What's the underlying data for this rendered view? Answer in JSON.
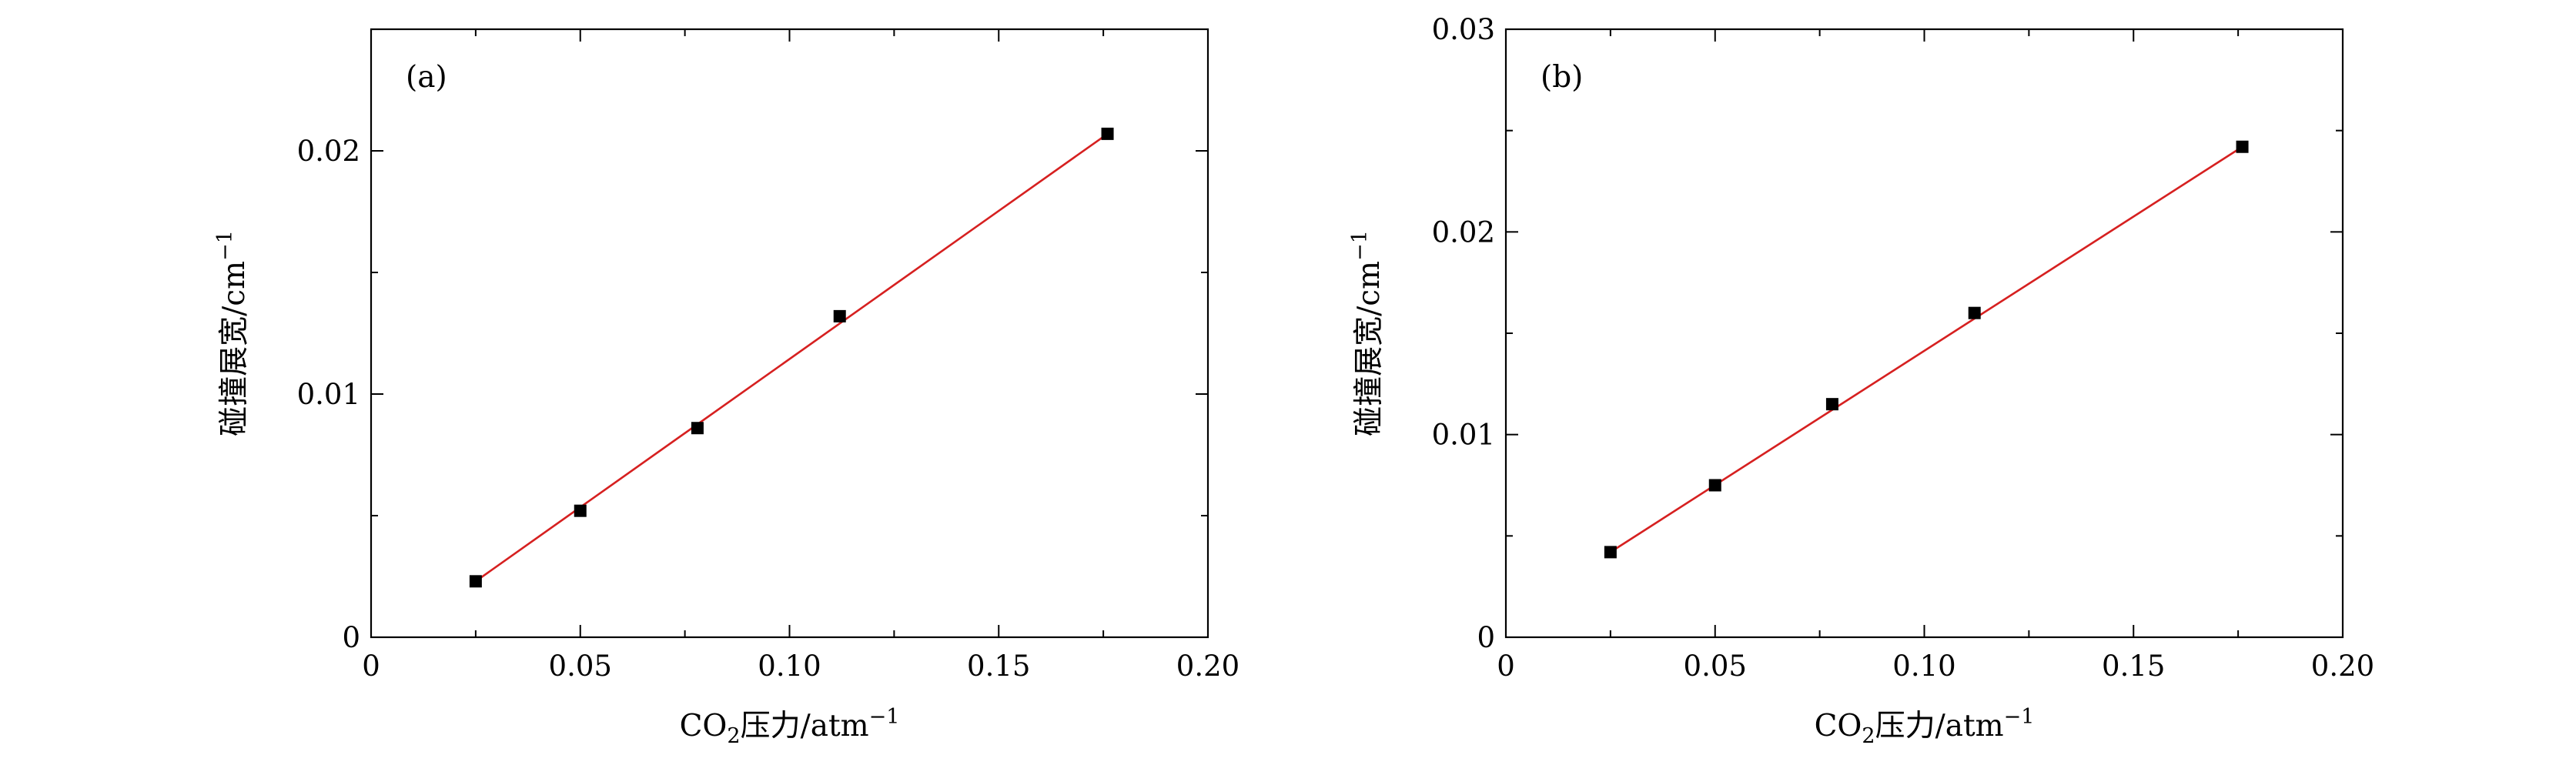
{
  "chart_data": [
    {
      "type": "scatter",
      "panel_label": "(a)",
      "xlabel_prefix": "CO",
      "xlabel_sub": "2",
      "xlabel_rest": "压力/atm",
      "xlabel_sup": "−1",
      "ylabel_text": "碰撞展宽/cm",
      "ylabel_sup": "−1",
      "xlim": [
        0,
        0.2
      ],
      "ylim": [
        0,
        0.025
      ],
      "xticks": [
        0,
        0.05,
        0.1,
        0.15,
        0.2
      ],
      "xtick_labels": [
        "0",
        "0.05",
        "0.10",
        "0.15",
        "0.20"
      ],
      "yticks": [
        0,
        0.01,
        0.02
      ],
      "ytick_labels": [
        "0",
        "0.01",
        "0.02"
      ],
      "marker_color": "#000000",
      "line_color": "#d62020",
      "series": [
        {
          "x": [
            0.025,
            0.05,
            0.078,
            0.112,
            0.176
          ],
          "y": [
            0.0023,
            0.0052,
            0.0086,
            0.0132,
            0.0207
          ]
        }
      ],
      "fit_line": {
        "x": [
          0.025,
          0.176
        ],
        "y": [
          0.0023,
          0.0207
        ]
      }
    },
    {
      "type": "scatter",
      "panel_label": "(b)",
      "xlabel_prefix": "CO",
      "xlabel_sub": "2",
      "xlabel_rest": "压力/atm",
      "xlabel_sup": "−1",
      "ylabel_text": "碰撞展宽/cm",
      "ylabel_sup": "−1",
      "xlim": [
        0,
        0.2
      ],
      "ylim": [
        0,
        0.03
      ],
      "xticks": [
        0,
        0.05,
        0.1,
        0.15,
        0.2
      ],
      "xtick_labels": [
        "0",
        "0.05",
        "0.10",
        "0.15",
        "0.20"
      ],
      "yticks": [
        0,
        0.01,
        0.02,
        0.03
      ],
      "ytick_labels": [
        "0",
        "0.01",
        "0.02",
        "0.03"
      ],
      "marker_color": "#000000",
      "line_color": "#d62020",
      "series": [
        {
          "x": [
            0.025,
            0.05,
            0.078,
            0.112,
            0.176
          ],
          "y": [
            0.0042,
            0.0075,
            0.0115,
            0.016,
            0.0242
          ]
        }
      ],
      "fit_line": {
        "x": [
          0.025,
          0.176
        ],
        "y": [
          0.0042,
          0.0242
        ]
      }
    }
  ]
}
